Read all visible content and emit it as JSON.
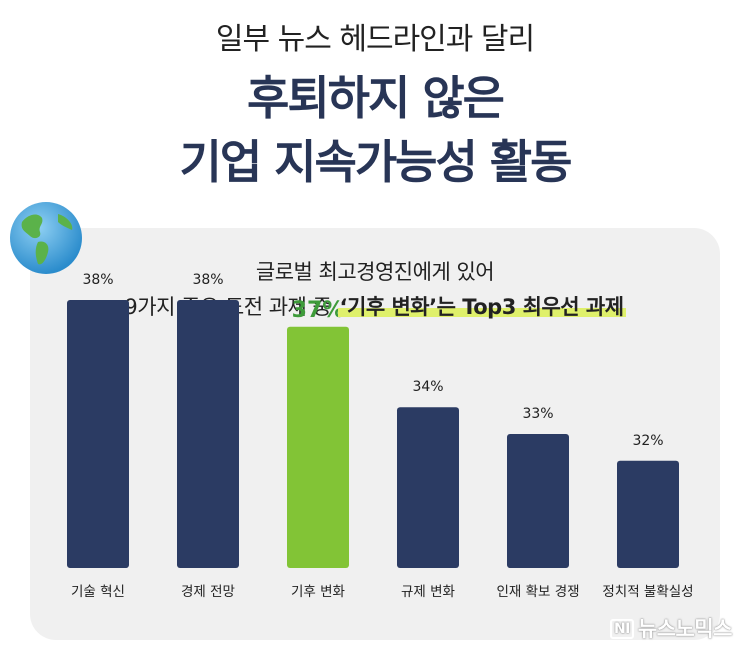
{
  "header": {
    "subtitle": "일부 뉴스 헤드라인과 달리",
    "title_line1": "후퇴하지 않은",
    "title_line2": "기업 지속가능성 활동"
  },
  "card": {
    "heading_line1": "글로벌 최고경영진에게 있어",
    "heading_line2_prefix": "9가지 주요 도전 과제 중 ",
    "heading_line2_highlight": "‘기후 변화’는 Top3 최우선 과제"
  },
  "chart_data": {
    "type": "bar",
    "categories": [
      "기술 혁신",
      "경제 전망",
      "기후 변화",
      "규제 변화",
      "인재 확보 경쟁",
      "정치적 불확실성"
    ],
    "values": [
      38,
      38,
      37,
      34,
      33,
      32
    ],
    "value_labels": [
      "38%",
      "38%",
      "37%",
      "34%",
      "33%",
      "32%"
    ],
    "highlight_index": 2,
    "colors": {
      "default": "#2b3b63",
      "highlight": "#82c436",
      "highlight_label": "#3e9b3a"
    },
    "ylim": [
      28,
      38
    ],
    "xlabel": "",
    "ylabel": ""
  },
  "logo": {
    "mark": "NI",
    "text": "뉴스노믹스"
  }
}
